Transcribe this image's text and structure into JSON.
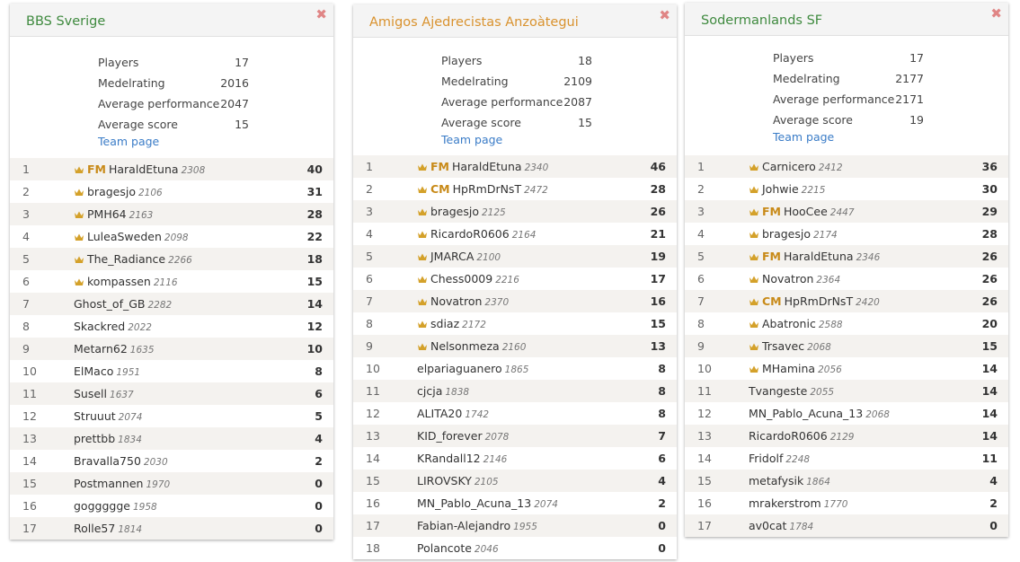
{
  "teams": [
    {
      "name": "BBS Sverige",
      "color": "#3f8a3f",
      "stats": [
        {
          "label": "Players",
          "value": "17"
        },
        {
          "label": "Medelrating",
          "value": "2016"
        },
        {
          "label": "Average performance",
          "value": "2047"
        },
        {
          "label": "Average score",
          "value": "15"
        }
      ],
      "team_page": "Team page",
      "players": [
        {
          "rank": "1",
          "crown": true,
          "title": "FM",
          "name": "HaraldEtuna",
          "rating": "2308",
          "score": "40"
        },
        {
          "rank": "2",
          "crown": true,
          "title": "",
          "name": "bragesjo",
          "rating": "2106",
          "score": "31"
        },
        {
          "rank": "3",
          "crown": true,
          "title": "",
          "name": "PMH64",
          "rating": "2163",
          "score": "28"
        },
        {
          "rank": "4",
          "crown": true,
          "title": "",
          "name": "LuleaSweden",
          "rating": "2098",
          "score": "22"
        },
        {
          "rank": "5",
          "crown": true,
          "title": "",
          "name": "The_Radiance",
          "rating": "2266",
          "score": "18"
        },
        {
          "rank": "6",
          "crown": true,
          "title": "",
          "name": "kompassen",
          "rating": "2116",
          "score": "15"
        },
        {
          "rank": "7",
          "crown": false,
          "title": "",
          "name": "Ghost_of_GB",
          "rating": "2282",
          "score": "14"
        },
        {
          "rank": "8",
          "crown": false,
          "title": "",
          "name": "Skackred",
          "rating": "2022",
          "score": "12"
        },
        {
          "rank": "9",
          "crown": false,
          "title": "",
          "name": "Metarn62",
          "rating": "1635",
          "score": "10"
        },
        {
          "rank": "10",
          "crown": false,
          "title": "",
          "name": "ElMaco",
          "rating": "1951",
          "score": "8"
        },
        {
          "rank": "11",
          "crown": false,
          "title": "",
          "name": "Susell",
          "rating": "1637",
          "score": "6"
        },
        {
          "rank": "12",
          "crown": false,
          "title": "",
          "name": "Struuut",
          "rating": "2074",
          "score": "5"
        },
        {
          "rank": "13",
          "crown": false,
          "title": "",
          "name": "prettbb",
          "rating": "1834",
          "score": "4"
        },
        {
          "rank": "14",
          "crown": false,
          "title": "",
          "name": "Bravalla750",
          "rating": "2030",
          "score": "2"
        },
        {
          "rank": "15",
          "crown": false,
          "title": "",
          "name": "Postmannen",
          "rating": "1970",
          "score": "0"
        },
        {
          "rank": "16",
          "crown": false,
          "title": "",
          "name": "goggggge",
          "rating": "1958",
          "score": "0"
        },
        {
          "rank": "17",
          "crown": false,
          "title": "",
          "name": "Rolle57",
          "rating": "1814",
          "score": "0"
        }
      ]
    },
    {
      "name": "Amigos Ajedrecistas Anzoàtegui",
      "color": "#d9922e",
      "stats": [
        {
          "label": "Players",
          "value": "18"
        },
        {
          "label": "Medelrating",
          "value": "2109"
        },
        {
          "label": "Average performance",
          "value": "2087"
        },
        {
          "label": "Average score",
          "value": "15"
        }
      ],
      "team_page": "Team page",
      "players": [
        {
          "rank": "1",
          "crown": true,
          "title": "FM",
          "name": "HaraldEtuna",
          "rating": "2340",
          "score": "46"
        },
        {
          "rank": "2",
          "crown": true,
          "title": "CM",
          "name": "HpRmDrNsT",
          "rating": "2472",
          "score": "28"
        },
        {
          "rank": "3",
          "crown": true,
          "title": "",
          "name": "bragesjo",
          "rating": "2125",
          "score": "26"
        },
        {
          "rank": "4",
          "crown": true,
          "title": "",
          "name": "RicardoR0606",
          "rating": "2164",
          "score": "21"
        },
        {
          "rank": "5",
          "crown": true,
          "title": "",
          "name": "JMARCA",
          "rating": "2100",
          "score": "19"
        },
        {
          "rank": "6",
          "crown": true,
          "title": "",
          "name": "Chess0009",
          "rating": "2216",
          "score": "17"
        },
        {
          "rank": "7",
          "crown": true,
          "title": "",
          "name": "Novatron",
          "rating": "2370",
          "score": "16"
        },
        {
          "rank": "8",
          "crown": true,
          "title": "",
          "name": "sdiaz",
          "rating": "2172",
          "score": "15"
        },
        {
          "rank": "9",
          "crown": true,
          "title": "",
          "name": "Nelsonmeza",
          "rating": "2160",
          "score": "13"
        },
        {
          "rank": "10",
          "crown": false,
          "title": "",
          "name": "elpariaguanero",
          "rating": "1865",
          "score": "8"
        },
        {
          "rank": "11",
          "crown": false,
          "title": "",
          "name": "cjcja",
          "rating": "1838",
          "score": "8"
        },
        {
          "rank": "12",
          "crown": false,
          "title": "",
          "name": "ALITA20",
          "rating": "1742",
          "score": "8"
        },
        {
          "rank": "13",
          "crown": false,
          "title": "",
          "name": "KID_forever",
          "rating": "2078",
          "score": "7"
        },
        {
          "rank": "14",
          "crown": false,
          "title": "",
          "name": "KRandall12",
          "rating": "2146",
          "score": "6"
        },
        {
          "rank": "15",
          "crown": false,
          "title": "",
          "name": "LIROVSKY",
          "rating": "2105",
          "score": "4"
        },
        {
          "rank": "16",
          "crown": false,
          "title": "",
          "name": "MN_Pablo_Acuna_13",
          "rating": "2074",
          "score": "2"
        },
        {
          "rank": "17",
          "crown": false,
          "title": "",
          "name": "Fabian-Alejandro",
          "rating": "1955",
          "score": "0"
        },
        {
          "rank": "18",
          "crown": false,
          "title": "",
          "name": "Polancote",
          "rating": "2046",
          "score": "0"
        }
      ]
    },
    {
      "name": "Sodermanlands SF",
      "color": "#3f8a3f",
      "stats": [
        {
          "label": "Players",
          "value": "17"
        },
        {
          "label": "Medelrating",
          "value": "2177"
        },
        {
          "label": "Average performance",
          "value": "2171"
        },
        {
          "label": "Average score",
          "value": "19"
        }
      ],
      "team_page": "Team page",
      "players": [
        {
          "rank": "1",
          "crown": true,
          "title": "",
          "name": "Carnicero",
          "rating": "2412",
          "score": "36"
        },
        {
          "rank": "2",
          "crown": true,
          "title": "",
          "name": "Johwie",
          "rating": "2215",
          "score": "30"
        },
        {
          "rank": "3",
          "crown": true,
          "title": "FM",
          "name": "HooCee",
          "rating": "2447",
          "score": "29"
        },
        {
          "rank": "4",
          "crown": true,
          "title": "",
          "name": "bragesjo",
          "rating": "2174",
          "score": "28"
        },
        {
          "rank": "5",
          "crown": true,
          "title": "FM",
          "name": "HaraldEtuna",
          "rating": "2346",
          "score": "26"
        },
        {
          "rank": "6",
          "crown": true,
          "title": "",
          "name": "Novatron",
          "rating": "2364",
          "score": "26"
        },
        {
          "rank": "7",
          "crown": true,
          "title": "CM",
          "name": "HpRmDrNsT",
          "rating": "2420",
          "score": "26"
        },
        {
          "rank": "8",
          "crown": true,
          "title": "",
          "name": "Abatronic",
          "rating": "2588",
          "score": "20"
        },
        {
          "rank": "9",
          "crown": true,
          "title": "",
          "name": "Trsavec",
          "rating": "2068",
          "score": "15"
        },
        {
          "rank": "10",
          "crown": true,
          "title": "",
          "name": "MHamina",
          "rating": "2056",
          "score": "14"
        },
        {
          "rank": "11",
          "crown": false,
          "title": "",
          "name": "Tvangeste",
          "rating": "2055",
          "score": "14"
        },
        {
          "rank": "12",
          "crown": false,
          "title": "",
          "name": "MN_Pablo_Acuna_13",
          "rating": "2068",
          "score": "14"
        },
        {
          "rank": "13",
          "crown": false,
          "title": "",
          "name": "RicardoR0606",
          "rating": "2129",
          "score": "14"
        },
        {
          "rank": "14",
          "crown": false,
          "title": "",
          "name": "Fridolf",
          "rating": "2248",
          "score": "11"
        },
        {
          "rank": "15",
          "crown": false,
          "title": "",
          "name": "metafysik",
          "rating": "1864",
          "score": "4"
        },
        {
          "rank": "16",
          "crown": false,
          "title": "",
          "name": "mrakerstrom",
          "rating": "1770",
          "score": "2"
        },
        {
          "rank": "17",
          "crown": false,
          "title": "",
          "name": "av0cat",
          "rating": "1784",
          "score": "0"
        }
      ]
    }
  ],
  "icons": {
    "close": "close-icon",
    "crown": "crown-icon"
  },
  "colors": {
    "title_badge": "#c88a18",
    "crown": "#d4a12a",
    "link": "#3a7cc7",
    "close": "#e08585"
  }
}
